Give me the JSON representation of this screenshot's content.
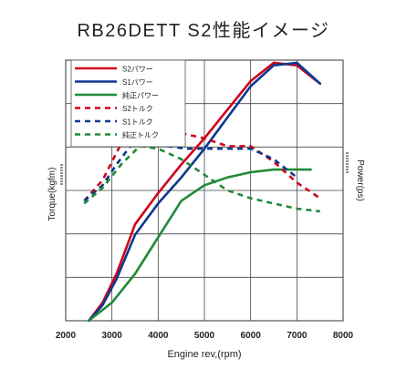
{
  "chart_data": {
    "type": "line",
    "title": "RB26DETT S2性能イメージ",
    "xlabel": "Engine rev,(rpm)",
    "ylabel_left": "Torque(kgfm)",
    "ylabel_right": "Power(ps)",
    "x_ticks": [
      "2000",
      "3000",
      "4000",
      "5000",
      "6000",
      "7000",
      "8000"
    ],
    "xlim": [
      2000,
      8000
    ],
    "grid": true,
    "legend_position": "top-left",
    "series": [
      {
        "name": "S2パワー",
        "color": "#d0021b",
        "style": "solid",
        "axis": "power",
        "x": [
          2500,
          2800,
          3100,
          3500,
          4000,
          4500,
          5000,
          5500,
          6000,
          6500,
          7000,
          7500
        ],
        "y": [
          0,
          0.07,
          0.18,
          0.37,
          0.49,
          0.6,
          0.7,
          0.81,
          0.92,
          0.99,
          0.98,
          0.91
        ]
      },
      {
        "name": "S1パワー",
        "color": "#0b3a8e",
        "style": "solid",
        "axis": "power",
        "x": [
          2500,
          2800,
          3100,
          3500,
          4000,
          4500,
          5000,
          5500,
          6000,
          6500,
          7000,
          7500
        ],
        "y": [
          0,
          0.06,
          0.16,
          0.33,
          0.45,
          0.55,
          0.66,
          0.78,
          0.9,
          0.98,
          0.99,
          0.91
        ]
      },
      {
        "name": "純正パワー",
        "color": "#1f8a3a",
        "style": "solid",
        "axis": "power",
        "x": [
          2500,
          3000,
          3500,
          4000,
          4500,
          5000,
          5500,
          6000,
          6500,
          7000,
          7300
        ],
        "y": [
          0,
          0.07,
          0.18,
          0.32,
          0.46,
          0.52,
          0.55,
          0.57,
          0.58,
          0.58,
          0.58
        ]
      },
      {
        "name": "S2トルク",
        "color": "#d0021b",
        "style": "dashed",
        "axis": "torque",
        "x": [
          2400,
          2800,
          3200,
          3600,
          4000,
          4500,
          5000,
          5500,
          6000,
          6500,
          7000,
          7500
        ],
        "y": [
          0.46,
          0.54,
          0.68,
          0.71,
          0.72,
          0.72,
          0.7,
          0.67,
          0.67,
          0.61,
          0.53,
          0.47
        ]
      },
      {
        "name": "S1トルク",
        "color": "#0b3a8e",
        "style": "dashed",
        "axis": "torque",
        "x": [
          2400,
          2800,
          3100,
          3400,
          3800,
          4200,
          4600,
          5000,
          5500,
          6000,
          6500,
          7000
        ],
        "y": [
          0.46,
          0.52,
          0.6,
          0.67,
          0.69,
          0.67,
          0.66,
          0.66,
          0.66,
          0.66,
          0.62,
          0.55
        ]
      },
      {
        "name": "純正トルク",
        "color": "#1f8a3a",
        "style": "dashed",
        "axis": "torque",
        "x": [
          2400,
          2800,
          3200,
          3600,
          4000,
          4500,
          5000,
          5500,
          6000,
          6500,
          7000,
          7500
        ],
        "y": [
          0.45,
          0.51,
          0.6,
          0.67,
          0.66,
          0.62,
          0.56,
          0.5,
          0.47,
          0.45,
          0.43,
          0.42
        ]
      }
    ]
  }
}
